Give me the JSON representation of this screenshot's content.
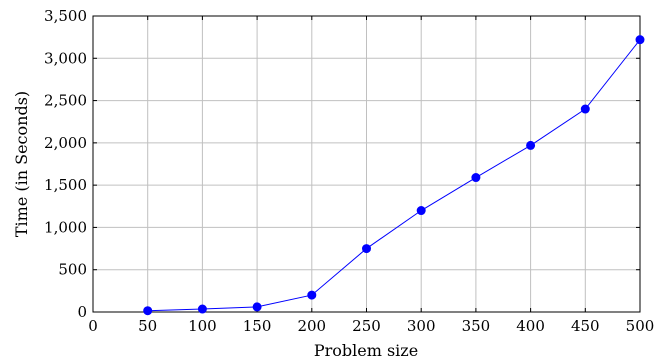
{
  "chart_data": {
    "type": "line",
    "title": "",
    "xlabel": "Problem size",
    "ylabel": "Time (in Seconds)",
    "xlim": [
      0,
      500
    ],
    "ylim": [
      0,
      3500
    ],
    "xticks": [
      0,
      50,
      100,
      150,
      200,
      250,
      300,
      350,
      400,
      450,
      500
    ],
    "yticks": [
      0,
      500,
      1000,
      1500,
      2000,
      2500,
      3000,
      3500
    ],
    "xtick_labels": [
      "0",
      "50",
      "100",
      "150",
      "200",
      "250",
      "300",
      "350",
      "400",
      "450",
      "500"
    ],
    "ytick_labels": [
      "0",
      "500",
      "1,000",
      "1,500",
      "2,000",
      "2,500",
      "3,000",
      "3,500"
    ],
    "grid": true,
    "legend": "none",
    "series": [
      {
        "color": "#0000ff",
        "x": [
          50,
          100,
          150,
          200,
          250,
          300,
          350,
          400,
          450,
          500
        ],
        "y": [
          15,
          35,
          60,
          200,
          750,
          1200,
          1590,
          1970,
          2400,
          3220
        ]
      }
    ]
  }
}
